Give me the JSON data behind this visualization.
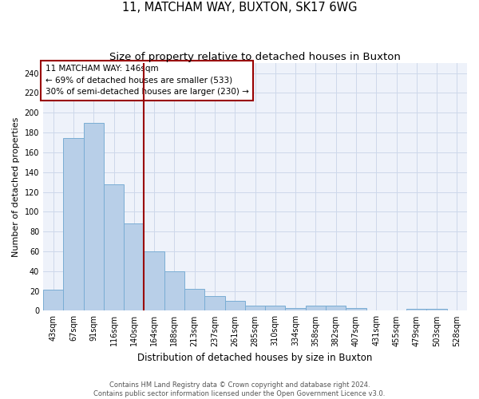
{
  "title": "11, MATCHAM WAY, BUXTON, SK17 6WG",
  "subtitle": "Size of property relative to detached houses in Buxton",
  "xlabel": "Distribution of detached houses by size in Buxton",
  "ylabel": "Number of detached properties",
  "annotation_line1": "11 MATCHAM WAY: 146sqm",
  "annotation_line2": "← 69% of detached houses are smaller (533)",
  "annotation_line3": "30% of semi-detached houses are larger (230) →",
  "categories": [
    "43sqm",
    "67sqm",
    "91sqm",
    "116sqm",
    "140sqm",
    "164sqm",
    "188sqm",
    "213sqm",
    "237sqm",
    "261sqm",
    "285sqm",
    "310sqm",
    "334sqm",
    "358sqm",
    "382sqm",
    "407sqm",
    "431sqm",
    "455sqm",
    "479sqm",
    "503sqm",
    "528sqm"
  ],
  "values": [
    21,
    174,
    190,
    128,
    88,
    60,
    40,
    22,
    15,
    10,
    5,
    5,
    3,
    5,
    5,
    3,
    0,
    0,
    2,
    2,
    0
  ],
  "bar_color": "#b8cfe8",
  "bar_edge_color": "#7aadd4",
  "vline_color": "#990000",
  "vline_x_index": 4,
  "annotation_box_color": "#990000",
  "ylim": [
    0,
    250
  ],
  "yticks": [
    0,
    20,
    40,
    60,
    80,
    100,
    120,
    140,
    160,
    180,
    200,
    220,
    240
  ],
  "grid_color": "#cdd8ea",
  "background_color": "#eef2fa",
  "footer_line1": "Contains HM Land Registry data © Crown copyright and database right 2024.",
  "footer_line2": "Contains public sector information licensed under the Open Government Licence v3.0.",
  "title_fontsize": 10.5,
  "subtitle_fontsize": 9.5,
  "ylabel_fontsize": 8,
  "xlabel_fontsize": 8.5,
  "tick_fontsize": 7,
  "annotation_fontsize": 7.5,
  "footer_fontsize": 6
}
